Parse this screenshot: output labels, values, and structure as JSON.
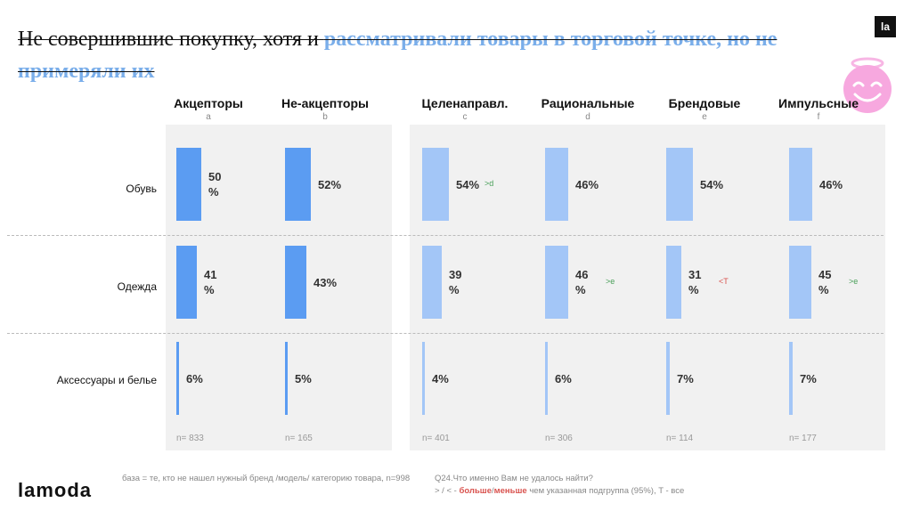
{
  "title": {
    "plain": "Не совершившие покупку, хотя и ",
    "highlight": "рассматривали товары в торговой точке, но не примеряли их"
  },
  "logo_mark": "la",
  "brand": "lamoda",
  "chart_data": {
    "type": "bar",
    "orientation": "horizontal",
    "unit": "%",
    "xlim": [
      0,
      100
    ],
    "rows": [
      "Обувь",
      "Одежда",
      "Аксессуары и белье"
    ],
    "groups": [
      {
        "id": "a",
        "name": "Акцепторы",
        "n": "n= 833",
        "values": [
          50,
          41,
          6
        ],
        "labels": [
          "50\n%",
          "41\n%",
          "6%"
        ],
        "sig": [
          "",
          "",
          ""
        ]
      },
      {
        "id": "b",
        "name": "Не-акцепторы",
        "n": "n= 165",
        "values": [
          52,
          43,
          5
        ],
        "labels": [
          "52%",
          "43%",
          "5%"
        ],
        "sig": [
          "",
          "",
          ""
        ]
      },
      {
        "id": "c",
        "name": "Целенаправл.",
        "n": "n= 401",
        "values": [
          54,
          39,
          4
        ],
        "labels": [
          "54%",
          "39\n%",
          "4%"
        ],
        "sig": [
          ">d",
          "",
          ""
        ]
      },
      {
        "id": "d",
        "name": "Рациональные",
        "n": "n= 306",
        "values": [
          46,
          46,
          6
        ],
        "labels": [
          "46%",
          "46\n%",
          "6%"
        ],
        "sig": [
          "",
          ">e",
          ""
        ]
      },
      {
        "id": "e",
        "name": "Брендовые",
        "n": "n= 114",
        "values": [
          54,
          31,
          7
        ],
        "labels": [
          "54%",
          "31\n%",
          "7%"
        ],
        "sig": [
          "",
          "<T",
          ""
        ]
      },
      {
        "id": "f",
        "name": "Импульсные",
        "n": "n= 177",
        "values": [
          46,
          45,
          7
        ],
        "labels": [
          "46%",
          "45\n%",
          "7%"
        ],
        "sig": [
          "",
          ">e",
          ""
        ]
      }
    ]
  },
  "footnotes": {
    "base": "база = те, кто не нашел нужный бренд /модель/ категорию товара, n=998",
    "question": "Q24.Что именно Вам не удалось найти?",
    "legend_sym": "> / < - ",
    "legend_more": "больше",
    "legend_sep": "/",
    "legend_less": "меньше",
    "legend_rest": " чем указанная подгруппа (95%), T - все"
  },
  "colors": {
    "dark_bar": "#5b9cf2",
    "light_bar": "#a3c6f7",
    "sig_more": "#4aa05a",
    "sig_less": "#d9534f"
  }
}
